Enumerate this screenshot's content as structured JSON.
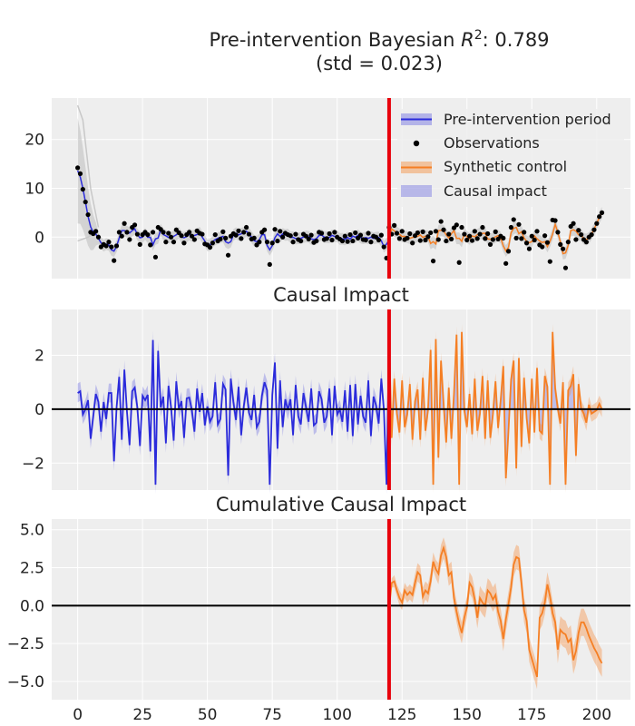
{
  "figure": {
    "title_line1_prefix": "Pre-intervention Bayesian ",
    "title_line1_r": "R",
    "title_line1_sup": "2",
    "title_line1_suffix": ": 0.789",
    "title_line2": "(std = 0.023)"
  },
  "colors": {
    "pre": "#2b2bdb",
    "post": "#f57f24",
    "intervention": "#e8000b",
    "observations": "#000000",
    "background": "#eeeeee",
    "grid": "#ffffff",
    "zero_line": "#000000",
    "band_gray": "#bdbdbd"
  },
  "chart_data": [
    {
      "type": "line",
      "title": "",
      "xlim": [
        -10,
        213
      ],
      "ylim": [
        -8.5,
        28.5
      ],
      "xticks": [
        0,
        25,
        50,
        75,
        100,
        125,
        150,
        175,
        200
      ],
      "yticks": [
        0,
        10,
        20
      ],
      "intervention_x": 120,
      "legend": {
        "placement": "top-right",
        "entries": [
          "Pre-intervention period",
          "Observations",
          "Synthetic control",
          "Causal impact"
        ]
      },
      "observations_x": [
        0,
        1,
        2,
        3,
        4,
        5,
        6,
        7,
        8,
        9,
        10,
        11,
        12,
        13,
        14,
        15,
        16,
        17,
        18,
        19,
        20,
        21,
        22,
        23,
        24,
        25,
        26,
        27,
        28,
        29,
        30,
        31,
        32,
        33,
        34,
        35,
        36,
        37,
        38,
        39,
        40,
        41,
        42,
        43,
        44,
        45,
        46,
        47,
        48,
        49,
        50,
        51,
        52,
        53,
        54,
        55,
        56,
        57,
        58,
        59,
        60,
        61,
        62,
        63,
        64,
        65,
        66,
        67,
        68,
        69,
        70,
        71,
        72,
        73,
        74,
        75,
        76,
        77,
        78,
        79,
        80,
        81,
        82,
        83,
        84,
        85,
        86,
        87,
        88,
        89,
        90,
        91,
        92,
        93,
        94,
        95,
        96,
        97,
        98,
        99,
        100,
        101,
        102,
        103,
        104,
        105,
        106,
        107,
        108,
        109,
        110,
        111,
        112,
        113,
        114,
        115,
        116,
        117,
        118,
        119,
        120,
        121,
        122,
        123,
        124,
        125,
        126,
        127,
        128,
        129,
        130,
        131,
        132,
        133,
        134,
        135,
        136,
        137,
        138,
        139,
        140,
        141,
        142,
        143,
        144,
        145,
        146,
        147,
        148,
        149,
        150,
        151,
        152,
        153,
        154,
        155,
        156,
        157,
        158,
        159,
        160,
        161,
        162,
        163,
        164,
        165,
        166,
        167,
        168,
        169,
        170,
        171,
        172,
        173,
        174,
        175,
        176,
        177,
        178,
        179,
        180,
        181,
        182,
        183,
        184,
        185,
        186,
        187,
        188,
        189,
        190,
        191,
        192,
        193,
        194,
        195,
        196,
        197,
        198,
        199,
        200,
        201,
        202
      ],
      "observations_y": [
        14.2,
        13.0,
        9.8,
        7.2,
        4.6,
        1.0,
        0.7,
        1.2,
        0.0,
        -2.0,
        -1.5,
        -1.8,
        -1.0,
        -2.0,
        -4.8,
        -1.8,
        1.0,
        0.2,
        2.8,
        1.0,
        -0.5,
        2.0,
        2.5,
        0.6,
        -1.5,
        0.5,
        1.0,
        0.5,
        -1.6,
        1.0,
        -4.1,
        2.0,
        1.6,
        1.0,
        -1.0,
        0.8,
        0.0,
        -1.0,
        1.5,
        0.9,
        0.3,
        -1.2,
        0.5,
        1.0,
        0.2,
        -0.5,
        1.3,
        0.8,
        0.6,
        -1.4,
        -1.6,
        -2.1,
        -1.2,
        0.5,
        -0.8,
        -0.4,
        1.1,
        -0.2,
        -3.7,
        0.2,
        0.7,
        0.4,
        1.3,
        -0.3,
        1.0,
        2.0,
        0.6,
        -0.4,
        -0.2,
        -1.6,
        -1.0,
        1.0,
        1.5,
        -1.0,
        -5.6,
        -1.2,
        1.6,
        -0.8,
        1.2,
        0.0,
        0.8,
        0.5,
        0.3,
        -1.0,
        0.6,
        -0.5,
        -0.8,
        0.6,
        0.2,
        -0.4,
        0.4,
        -1.1,
        -0.8,
        1.0,
        0.8,
        -0.5,
        -0.3,
        0.7,
        -0.6,
        1.0,
        0.0,
        -0.4,
        -0.8,
        0.2,
        -0.9,
        0.5,
        -0.8,
        0.9,
        -0.2,
        0.4,
        -0.5,
        -0.6,
        0.8,
        -1.0,
        0.2,
        0.0,
        -0.6,
        0.4,
        -2.0,
        -4.3,
        2.0,
        0.6,
        2.4,
        0.8,
        -0.3,
        1.2,
        -0.5,
        -0.2,
        0.7,
        -1.2,
        0.3,
        0.9,
        -0.7,
        1.1,
        -0.6,
        0.1,
        0.9,
        -4.9,
        1.2,
        -0.5,
        3.2,
        1.5,
        -0.8,
        0.6,
        -0.4,
        1.9,
        2.5,
        -5.2,
        2.0,
        0.6,
        -0.6,
        0.2,
        -0.7,
        1.2,
        -0.3,
        0.6,
        2.0,
        -0.3,
        0.7,
        -1.5,
        -0.5,
        1.1,
        -0.4,
        0.2,
        -0.2,
        -5.4,
        -2.9,
        2.0,
        3.6,
        -0.2,
        2.6,
        -0.3,
        1.0,
        -1.2,
        -2.4,
        0.2,
        -0.6,
        1.2,
        -1.6,
        -2.0,
        0.3,
        -1.1,
        -5.0,
        3.5,
        3.4,
        1.0,
        -1.5,
        -2.4,
        -6.3,
        -1.0,
        2.2,
        2.8,
        -0.5,
        1.4,
        0.5,
        -0.5,
        -1.0,
        0.0,
        0.5,
        1.5,
        2.8,
        4.2,
        5.0,
        5.8
      ]
    },
    {
      "type": "line",
      "title": "Causal Impact",
      "xlim": [
        -10,
        213
      ],
      "ylim": [
        -3.0,
        3.7
      ],
      "yticks": [
        -2,
        0,
        2
      ],
      "intervention_x": 120,
      "zero_line": true
    },
    {
      "type": "line",
      "title": "Cumulative Causal Impact",
      "xlim": [
        -10,
        213
      ],
      "ylim": [
        -6.2,
        5.7
      ],
      "xticks": [
        0,
        25,
        50,
        75,
        100,
        125,
        150,
        175,
        200
      ],
      "yticks": [
        -5.0,
        -2.5,
        0.0,
        2.5,
        5.0
      ],
      "intervention_x": 120,
      "zero_line": true,
      "x": [
        120,
        121,
        122,
        123,
        124,
        125,
        126,
        127,
        128,
        129,
        130,
        131,
        132,
        133,
        134,
        135,
        136,
        137,
        138,
        139,
        140,
        141,
        142,
        143,
        144,
        145,
        146,
        147,
        148,
        149,
        150,
        151,
        152,
        153,
        154,
        155,
        156,
        157,
        158,
        159,
        160,
        161,
        162,
        163,
        164,
        165,
        166,
        167,
        168,
        169,
        170,
        171,
        172,
        173,
        174,
        175,
        176,
        177,
        178,
        179,
        180,
        181,
        182,
        183,
        184,
        185,
        186,
        187,
        188,
        189,
        190,
        191,
        192,
        193,
        194,
        195,
        196,
        197,
        198,
        199,
        200,
        201,
        202
      ],
      "mean": [
        -0.2,
        1.5,
        1.6,
        1.0,
        0.5,
        0.2,
        1.0,
        0.7,
        0.9,
        0.7,
        1.5,
        2.2,
        2.0,
        0.6,
        1.0,
        0.8,
        1.6,
        2.9,
        2.4,
        2.1,
        3.3,
        3.8,
        3.2,
        2.0,
        2.2,
        0.5,
        -0.4,
        -1.2,
        -1.8,
        -0.8,
        -0.1,
        1.5,
        1.2,
        0.4,
        -0.8,
        0.5,
        0.2,
        0.0,
        1.0,
        0.8,
        0.4,
        0.7,
        -0.4,
        -1.0,
        -2.2,
        -0.9,
        0.1,
        1.2,
        2.7,
        3.2,
        3.1,
        1.5,
        -0.3,
        -1.0,
        -2.9,
        -3.5,
        -4.1,
        -4.7,
        -0.8,
        -0.5,
        0.2,
        1.4,
        0.6,
        -0.5,
        -1.1,
        -2.9,
        -1.6,
        -1.8,
        -1.9,
        -2.4,
        -2.2,
        -3.6,
        -3.0,
        -1.8,
        -1.1,
        -1.1,
        -1.5,
        -2.0,
        -2.4,
        -2.8,
        -3.1,
        -3.5,
        -3.8
      ],
      "band_width": [
        0.1,
        0.3,
        0.4,
        0.4,
        0.5,
        0.5,
        0.5,
        0.5,
        0.5,
        0.5,
        0.6,
        0.6,
        0.6,
        0.6,
        0.6,
        0.6,
        0.6,
        0.6,
        0.6,
        0.7,
        0.7,
        0.7,
        0.7,
        0.7,
        0.7,
        0.7,
        0.7,
        0.7,
        0.7,
        0.7,
        0.7,
        0.7,
        0.7,
        0.7,
        0.7,
        0.8,
        0.8,
        0.8,
        0.8,
        0.8,
        0.8,
        0.8,
        0.8,
        0.8,
        0.8,
        0.8,
        0.8,
        0.8,
        0.8,
        0.8,
        0.8,
        0.8,
        0.8,
        0.8,
        0.8,
        0.8,
        0.8,
        0.8,
        0.8,
        0.8,
        0.8,
        0.8,
        0.8,
        0.8,
        0.8,
        0.9,
        0.9,
        0.9,
        0.9,
        0.9,
        0.9,
        0.9,
        0.9,
        0.9,
        0.9,
        0.9,
        0.9,
        0.9,
        0.9,
        0.9,
        0.9,
        0.9,
        0.9
      ]
    }
  ]
}
